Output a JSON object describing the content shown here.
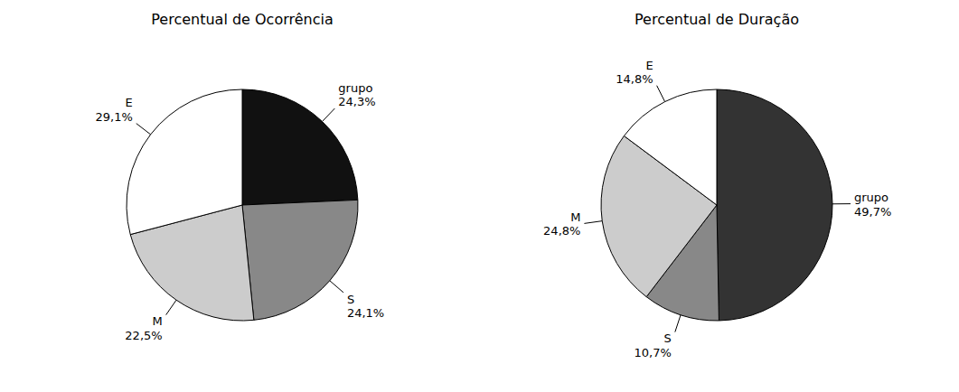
{
  "chart_data": [
    {
      "type": "pie",
      "title": "Percentual de Ocorrência",
      "categories": [
        "grupo",
        "S",
        "M",
        "E"
      ],
      "values": [
        24.3,
        24.1,
        22.5,
        29.1
      ],
      "value_labels": [
        "24,3%",
        "24,1%",
        "22,5%",
        "29,1%"
      ],
      "colors": [
        "#111111",
        "#888888",
        "#cccccc",
        "#ffffff"
      ],
      "data_labels": true
    },
    {
      "type": "pie",
      "title": "Percentual de Duração",
      "categories": [
        "grupo",
        "S",
        "M",
        "E"
      ],
      "values": [
        49.7,
        10.7,
        24.8,
        14.8
      ],
      "value_labels": [
        "49,7%",
        "10,7%",
        "24,8%",
        "14,8%"
      ],
      "colors": [
        "#333333",
        "#888888",
        "#cccccc",
        "#ffffff"
      ],
      "data_labels": true
    }
  ]
}
